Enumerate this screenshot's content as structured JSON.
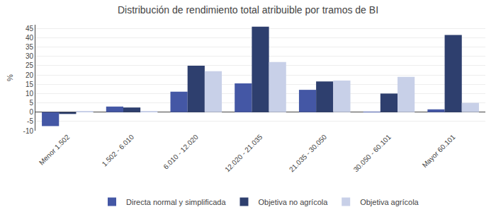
{
  "chart_data": {
    "type": "bar",
    "title": "Distribución de rendimiento total atribuible por tramos de BI",
    "ylabel": "%",
    "categories": [
      "Menor 1.502",
      "1.502 - 6.010",
      "6.010 - 12.020",
      "12.020 - 21.035",
      "21.035 - 30.050",
      "30.050 - 60.101",
      "Mayor 60.101"
    ],
    "series": [
      {
        "name": "Directa normal y simplificada",
        "color": "#4457a5",
        "values": [
          -7.5,
          3.0,
          11.0,
          15.5,
          12.0,
          0.2,
          1.5
        ]
      },
      {
        "name": "Objetiva no agrícola",
        "color": "#2e3f6e",
        "values": [
          -1.0,
          2.5,
          25.0,
          46.0,
          16.5,
          10.0,
          41.5
        ]
      },
      {
        "name": "Objetiva agrícola",
        "color": "#c8d0e8",
        "values": [
          0.5,
          0.5,
          22.0,
          27.0,
          17.0,
          19.0,
          5.0
        ]
      }
    ],
    "ylim": [
      -10,
      47
    ],
    "yticks": [
      -10,
      -5,
      0,
      5,
      10,
      15,
      20,
      25,
      30,
      35,
      40,
      45
    ],
    "grid": true,
    "legend": "bottom"
  }
}
